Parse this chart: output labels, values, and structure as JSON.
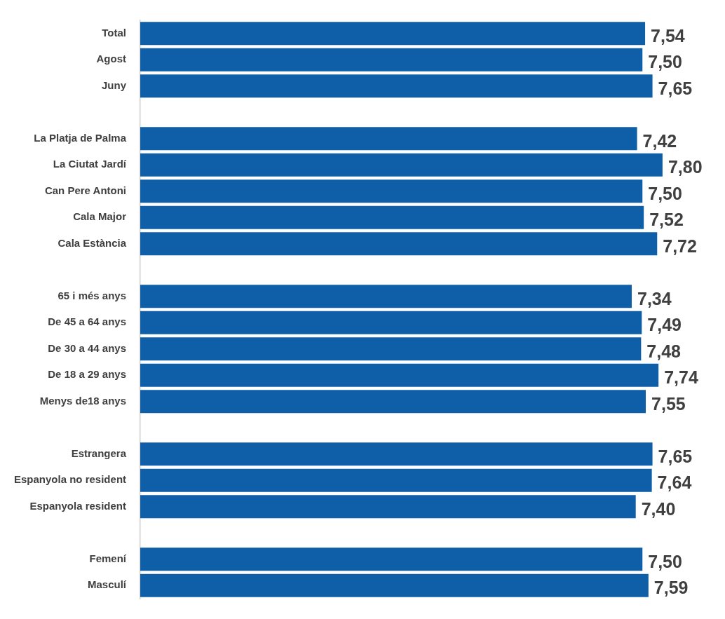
{
  "chart_data": {
    "type": "bar",
    "orientation": "horizontal",
    "categories": [
      "Total",
      "Agost",
      "Juny",
      null,
      "La Platja de Palma",
      "La Ciutat Jardí",
      "Can Pere Antoni",
      "Cala Major",
      "Cala Estància",
      null,
      "65 i més anys",
      "De 45 a 64 anys",
      "De 30 a 44 anys",
      "De 18 a 29 anys",
      "Menys de18 anys",
      null,
      "Estrangera",
      "Espanyola no resident",
      "Espanyola resident",
      null,
      "Femení",
      "Masculí"
    ],
    "values": [
      7.54,
      7.5,
      7.65,
      null,
      7.42,
      7.8,
      7.5,
      7.52,
      7.72,
      null,
      7.34,
      7.49,
      7.48,
      7.74,
      7.55,
      null,
      7.65,
      7.64,
      7.4,
      null,
      7.5,
      7.59
    ],
    "value_labels": [
      "7,54",
      "7,50",
      "7,65",
      null,
      "7,42",
      "7,80",
      "7,50",
      "7,52",
      "7,72",
      null,
      "7,34",
      "7,49",
      "7,48",
      "7,74",
      "7,55",
      null,
      "7,65",
      "7,64",
      "7,40",
      null,
      "7,50",
      "7,59"
    ],
    "color": "#0f5fa8",
    "legend": false,
    "tick_labels": "y"
  }
}
